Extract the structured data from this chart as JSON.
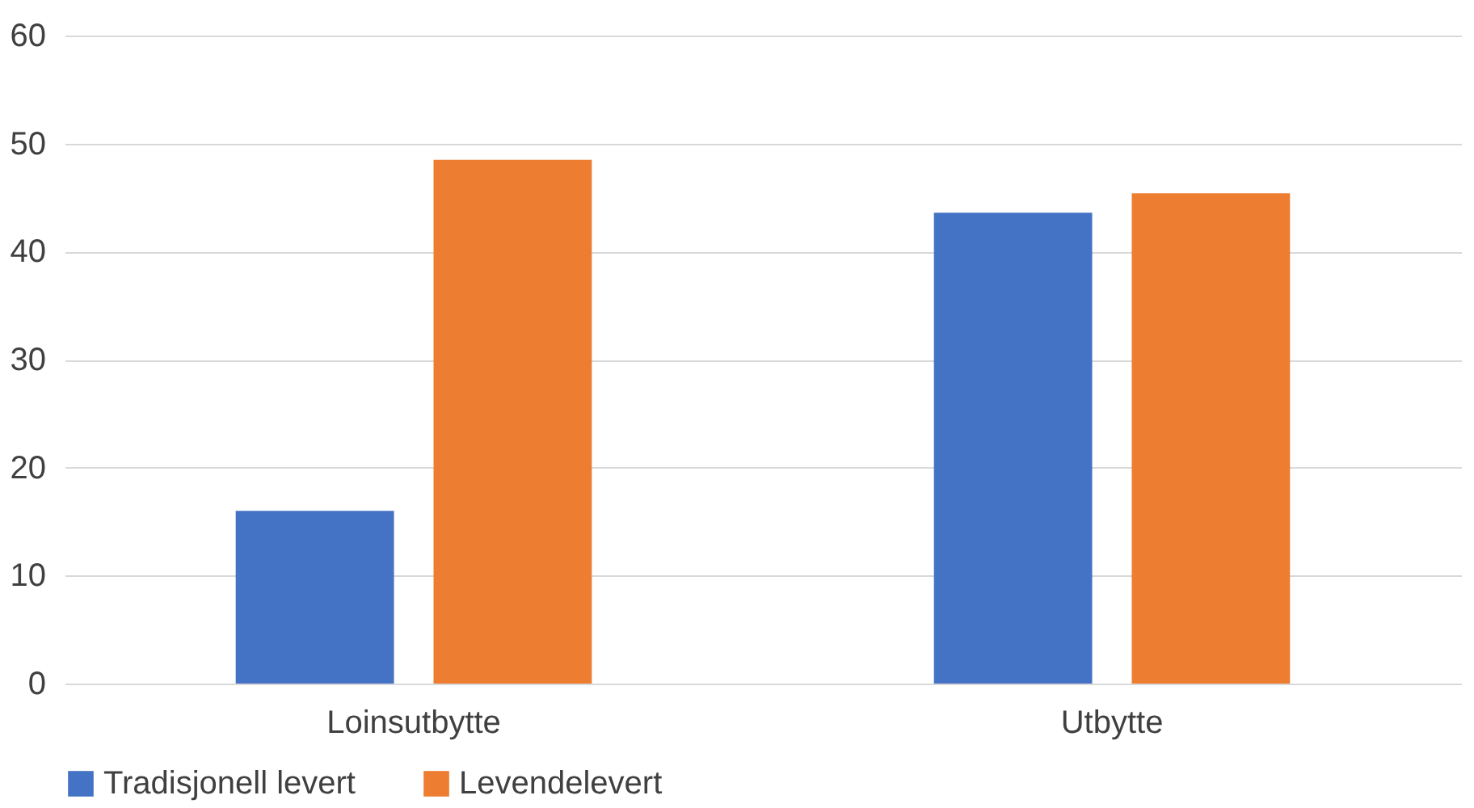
{
  "chart_data": {
    "type": "bar",
    "categories": [
      "Loinsutbytte",
      "Utbytte"
    ],
    "series": [
      {
        "name": "Tradisjonell levert",
        "color": "#4472c4",
        "values": [
          16.0,
          43.6
        ]
      },
      {
        "name": "Levendelevert",
        "color": "#ed7d31",
        "values": [
          48.5,
          45.4
        ]
      }
    ],
    "ylim": [
      0,
      60
    ],
    "yticks": [
      0,
      10,
      20,
      30,
      40,
      50,
      60
    ],
    "grid": "y",
    "legend": "bottom"
  }
}
